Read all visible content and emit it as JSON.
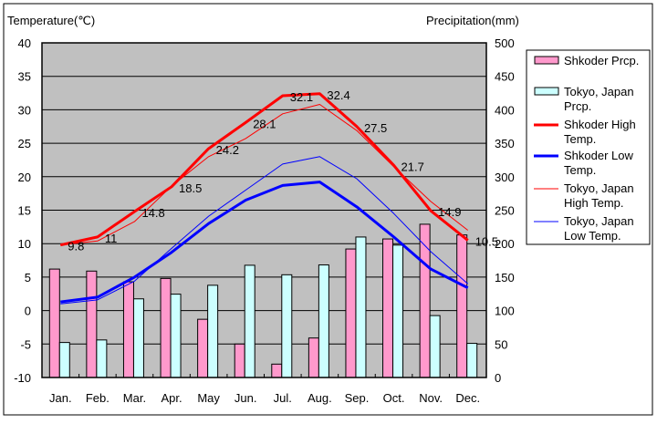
{
  "chart_data": {
    "type": "bar+line",
    "title": "",
    "y_left_label": "Temperature(℃)",
    "y_right_label": "Precipitation(mm)",
    "y_left_range": [
      -10,
      40
    ],
    "y_left_ticks": [
      40,
      35,
      30,
      25,
      20,
      15,
      10,
      5,
      0,
      -5,
      -10
    ],
    "y_right_range": [
      0,
      500
    ],
    "y_right_ticks": [
      500,
      450,
      400,
      350,
      300,
      250,
      200,
      150,
      100,
      50,
      0
    ],
    "categories": [
      "Jan.",
      "Feb.",
      "Mar.",
      "Apr.",
      "May",
      "Jun.",
      "Jul.",
      "Aug.",
      "Sep.",
      "Oct.",
      "Nov.",
      "Dec."
    ],
    "grid": true,
    "legend_position": "right",
    "bar_series": [
      {
        "name": "Shkoder Prcp.",
        "color": "#ff99cc",
        "values": [
          162,
          159,
          143,
          148,
          87,
          50,
          20,
          59,
          192,
          207,
          229,
          213
        ]
      },
      {
        "name": "Tokyo, Japan Prcp.",
        "color": "#ccffff",
        "values": [
          52.3,
          56.1,
          117.5,
          124.5,
          137.8,
          167.7,
          153.5,
          168.2,
          209.9,
          197.8,
          92.5,
          51.0
        ]
      }
    ],
    "line_series": [
      {
        "name": "Shkoder High Temp.",
        "color": "#ff0000",
        "width": 3,
        "labels": true,
        "values": [
          9.8,
          11,
          14.8,
          18.5,
          24.2,
          28.1,
          32.1,
          32.4,
          27.5,
          21.7,
          14.9,
          10.5
        ]
      },
      {
        "name": "Shkoder Low Temp.",
        "color": "#0000ff",
        "width": 3,
        "labels": false,
        "values": [
          1.3,
          2.0,
          5.0,
          8.7,
          13.0,
          16.5,
          18.7,
          19.2,
          15.5,
          11.0,
          6.2,
          3.4
        ]
      },
      {
        "name": "Tokyo, Japan High Temp.",
        "color": "#ff0000",
        "width": 1,
        "labels": false,
        "values": [
          9.8,
          10.4,
          13.3,
          18.6,
          23.0,
          25.7,
          29.4,
          30.8,
          26.9,
          21.5,
          16.3,
          12.0
        ]
      },
      {
        "name": "Tokyo, Japan Low Temp.",
        "color": "#0000ff",
        "width": 1,
        "labels": false,
        "values": [
          1.0,
          1.6,
          4.4,
          9.3,
          14.1,
          18.0,
          21.9,
          23.0,
          19.7,
          14.5,
          8.8,
          4.0
        ]
      }
    ],
    "legend_entries": [
      [
        "Shkoder Prcp."
      ],
      [
        "Tokyo, Japan",
        "Prcp."
      ],
      [
        "Shkoder High",
        "Temp."
      ],
      [
        "Shkoder Low",
        "Temp."
      ],
      [
        "Tokyo, Japan",
        "High Temp."
      ],
      [
        "Tokyo, Japan",
        "Low Temp."
      ]
    ]
  }
}
